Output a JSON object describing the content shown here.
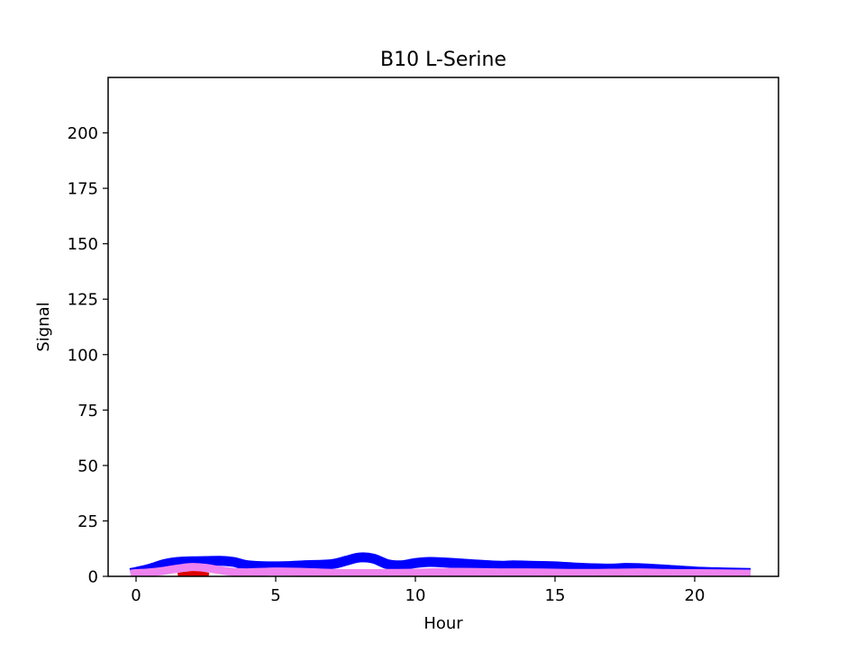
{
  "chart_data": {
    "type": "line",
    "title": "B10 L-Serine",
    "xlabel": "Hour",
    "ylabel": "Signal",
    "xlim": [
      -1,
      23
    ],
    "ylim": [
      0,
      225
    ],
    "xticks": [
      0,
      5,
      10,
      15,
      20
    ],
    "yticks": [
      0,
      25,
      50,
      75,
      100,
      125,
      150,
      175,
      200
    ],
    "grid": false,
    "legend": "none",
    "series": [
      {
        "color": "#0000ff",
        "x": [
          -0.2,
          0,
          0.5,
          1,
          1.5,
          2,
          2.5,
          3,
          3.5,
          4,
          5,
          6,
          7,
          7.5,
          8,
          8.5,
          9,
          9.5,
          10,
          10.5,
          11,
          12,
          13,
          13.5,
          14,
          15,
          16,
          17,
          17.5,
          18,
          19,
          20,
          21,
          22
        ],
        "values": [
          1.5,
          2.0,
          3.5,
          5.5,
          6.5,
          6.8,
          6.9,
          7.0,
          6.5,
          5.0,
          4.5,
          5.0,
          5.5,
          7.0,
          8.5,
          8.0,
          5.5,
          5.0,
          6.0,
          6.5,
          6.3,
          5.5,
          4.8,
          5.0,
          4.8,
          4.5,
          3.8,
          3.5,
          3.8,
          3.7,
          3.0,
          2.2,
          1.8,
          1.5
        ]
      },
      {
        "color": "#dd0000",
        "x": [
          1.5,
          1.8,
          2.1,
          2.4,
          2.6
        ],
        "values": [
          0.2,
          0.7,
          1.1,
          0.7,
          0.2
        ]
      },
      {
        "color": "#ee82ee",
        "x": [
          -0.2,
          0,
          0.5,
          1,
          1.5,
          2,
          2.5,
          3,
          3.5,
          4,
          5,
          6,
          7,
          8,
          9,
          10,
          11,
          12,
          13,
          14,
          15,
          16,
          17,
          18,
          19,
          20,
          21,
          22
        ],
        "values": [
          1.2,
          1.4,
          1.8,
          2.5,
          3.5,
          4.2,
          3.8,
          2.8,
          2.0,
          1.8,
          2.2,
          2.0,
          1.5,
          1.4,
          1.5,
          1.6,
          2.0,
          2.0,
          1.8,
          1.8,
          1.6,
          1.5,
          1.6,
          1.8,
          1.5,
          1.4,
          1.3,
          1.2
        ]
      }
    ]
  }
}
